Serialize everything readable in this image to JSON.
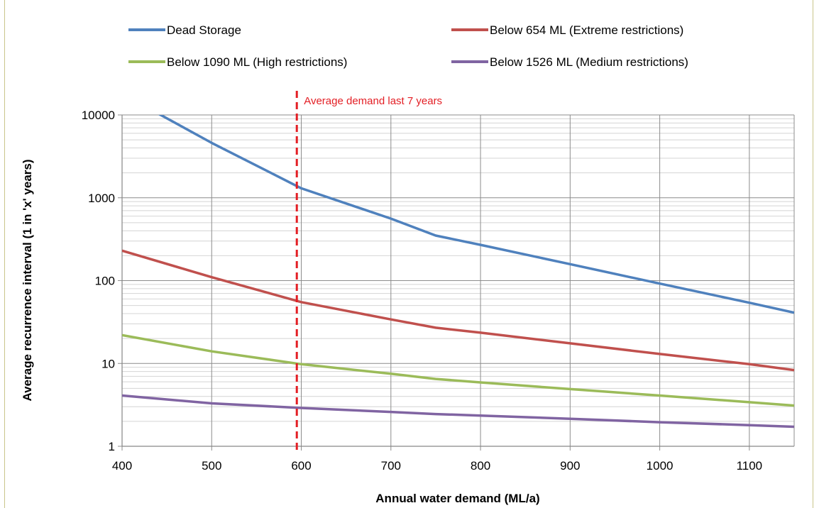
{
  "chart_data": {
    "type": "line",
    "title": "",
    "xlabel": "Annual water demand (ML/a)",
    "ylabel": "Average recurrence interval  (1 in  'x'  years)",
    "xlim": [
      400,
      1150
    ],
    "ylim": [
      1,
      10000
    ],
    "yscale": "log",
    "grid": true,
    "legend_position": "top",
    "x_ticks": [
      "400",
      "500",
      "600",
      "700",
      "800",
      "900",
      "1000",
      "1100"
    ],
    "y_ticks": [
      "1",
      "10",
      "100",
      "1000",
      "10000"
    ],
    "series": [
      {
        "name": "Dead Storage",
        "color": "#4f81bd",
        "points": [
          [
            400,
            18000
          ],
          [
            500,
            4600
          ],
          [
            600,
            1300
          ],
          [
            700,
            560
          ],
          [
            750,
            350
          ],
          [
            800,
            270
          ],
          [
            900,
            158
          ],
          [
            1000,
            92
          ],
          [
            1100,
            54
          ],
          [
            1150,
            41
          ]
        ]
      },
      {
        "name": "Below 654 ML (Extreme restrictions)",
        "color": "#c0504d",
        "points": [
          [
            400,
            230
          ],
          [
            500,
            110
          ],
          [
            600,
            55
          ],
          [
            700,
            34
          ],
          [
            750,
            27
          ],
          [
            800,
            23.5
          ],
          [
            900,
            17.5
          ],
          [
            1000,
            13
          ],
          [
            1100,
            9.8
          ],
          [
            1150,
            8.3
          ]
        ]
      },
      {
        "name": "Below 1090 ML (High restrictions)",
        "color": "#9bbb59",
        "points": [
          [
            400,
            22
          ],
          [
            500,
            14
          ],
          [
            600,
            9.8
          ],
          [
            700,
            7.5
          ],
          [
            750,
            6.5
          ],
          [
            800,
            5.9
          ],
          [
            900,
            4.9
          ],
          [
            1000,
            4.1
          ],
          [
            1100,
            3.4
          ],
          [
            1150,
            3.1
          ]
        ]
      },
      {
        "name": "Below 1526 ML (Medium restrictions)",
        "color": "#8064a2",
        "points": [
          [
            400,
            4.1
          ],
          [
            500,
            3.3
          ],
          [
            600,
            2.9
          ],
          [
            700,
            2.6
          ],
          [
            750,
            2.45
          ],
          [
            800,
            2.35
          ],
          [
            900,
            2.15
          ],
          [
            1000,
            1.95
          ],
          [
            1100,
            1.8
          ],
          [
            1150,
            1.72
          ]
        ]
      }
    ],
    "annotations": [
      {
        "type": "vline",
        "x": 595,
        "color": "#e31e24",
        "style": "dashed",
        "label": "Average demand last 7 years"
      }
    ]
  }
}
